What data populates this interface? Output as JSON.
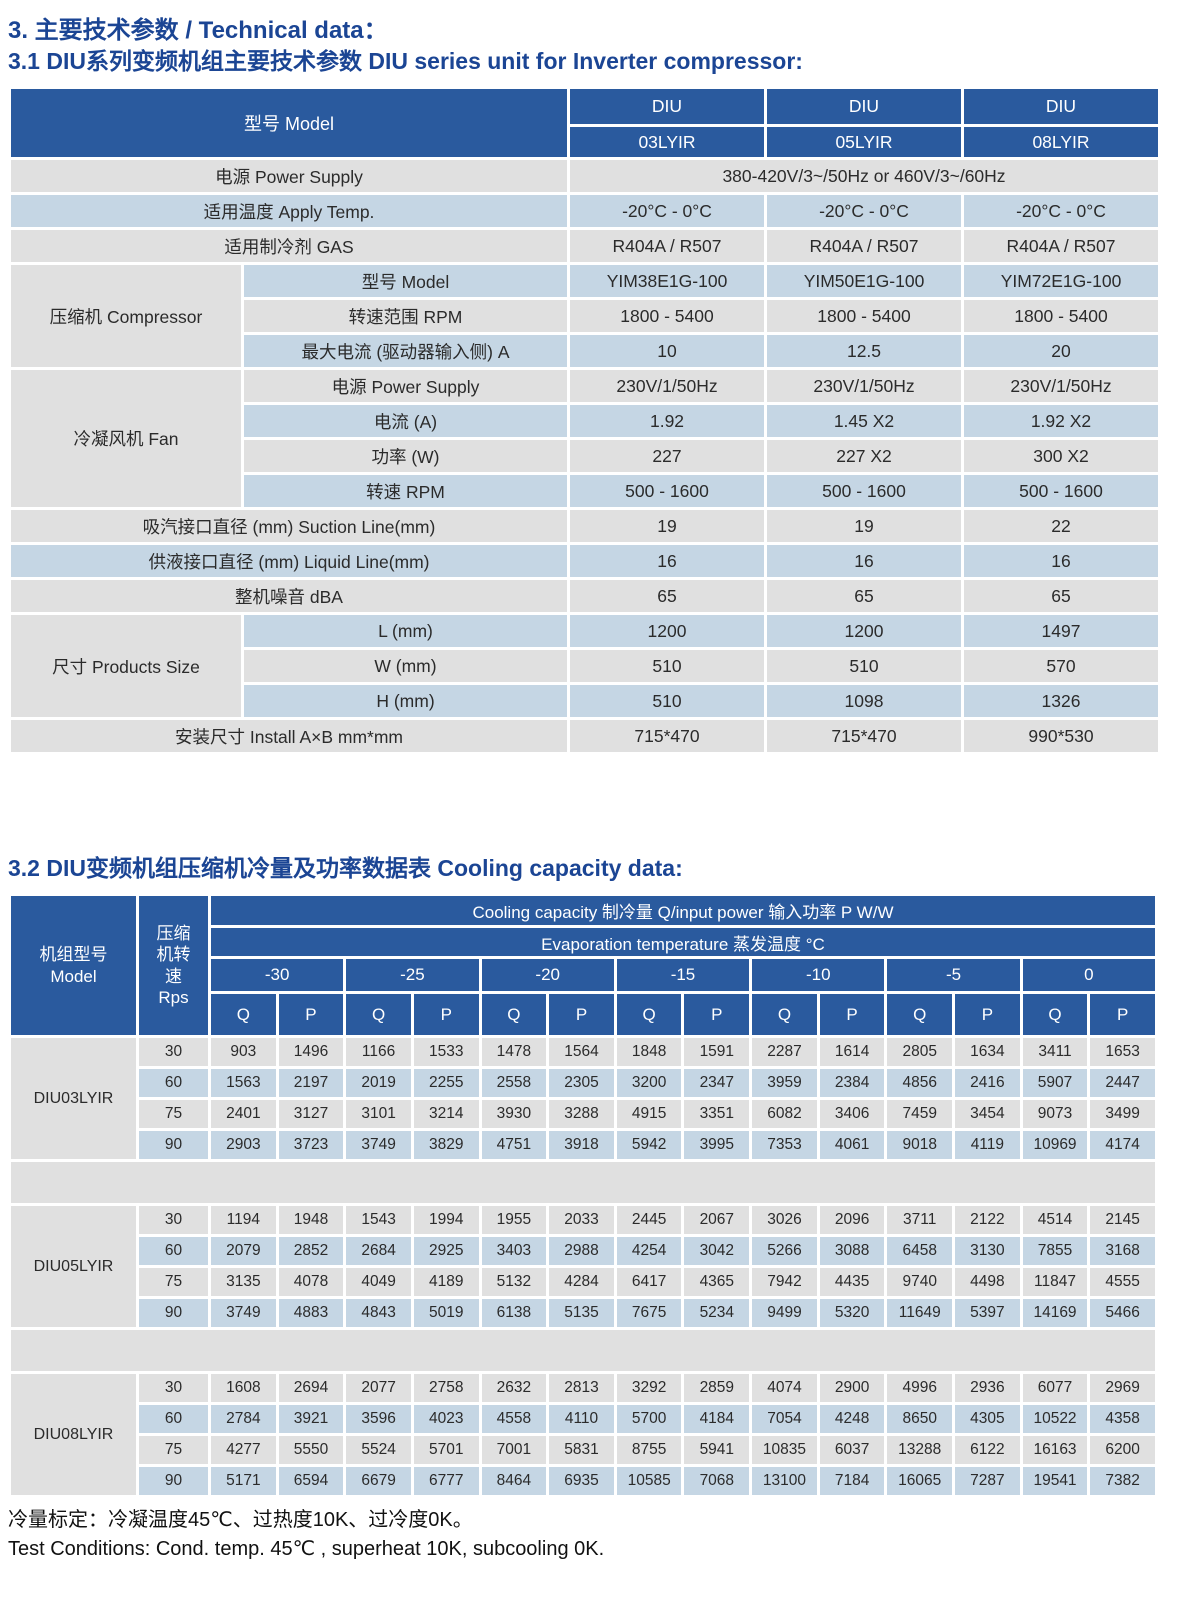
{
  "page_titles": {
    "section": "3. 主要技术参数 / Technical data：",
    "table1": "3.1 DIU系列变频机组主要技术参数 DIU series unit for Inverter compressor:",
    "table2": "3.2 DIU变频机组压缩机冷量及功率数据表 Cooling capacity data:"
  },
  "colors": {
    "header_blue": "#2a5a9e",
    "row_gray": "#e0e0e0",
    "row_blue": "#c5d6e4",
    "title_blue": "#1b4594"
  },
  "spec_table": {
    "corner_label": "型号  Model",
    "columns": [
      {
        "brand": "DIU",
        "model": "03LYIR"
      },
      {
        "brand": "DIU",
        "model": "05LYIR"
      },
      {
        "brand": "DIU",
        "model": "08LYIR"
      }
    ],
    "rows": [
      {
        "type": "merged",
        "label": "电源  Power Supply",
        "value": "380-420V/3~/50Hz or 460V/3~/60Hz"
      },
      {
        "type": "plain",
        "label": "适用温度  Apply Temp.",
        "values": [
          "-20°C - 0°C",
          "-20°C - 0°C",
          "-20°C - 0°C"
        ]
      },
      {
        "type": "plain",
        "label": "适用制冷剂  GAS",
        "values": [
          "R404A / R507",
          "R404A / R507",
          "R404A / R507"
        ]
      },
      {
        "type": "group",
        "group": "压缩机  Compressor",
        "span": 3,
        "sub": "型号  Model",
        "values": [
          "YIM38E1G-100",
          "YIM50E1G-100",
          "YIM72E1G-100"
        ]
      },
      {
        "type": "sub",
        "sub": "转速范围  RPM",
        "values": [
          "1800 - 5400",
          "1800 - 5400",
          "1800 - 5400"
        ]
      },
      {
        "type": "sub",
        "sub": "最大电流 (驱动器输入侧) A",
        "values": [
          "10",
          "12.5",
          "20"
        ]
      },
      {
        "type": "group",
        "group": "冷凝风机  Fan",
        "span": 4,
        "sub": "电源  Power Supply",
        "values": [
          "230V/1/50Hz",
          "230V/1/50Hz",
          "230V/1/50Hz"
        ]
      },
      {
        "type": "sub",
        "sub": "电流 (A)",
        "values": [
          "1.92",
          "1.45 X2",
          "1.92 X2"
        ]
      },
      {
        "type": "sub",
        "sub": "功率 (W)",
        "values": [
          "227",
          "227 X2",
          "300 X2"
        ]
      },
      {
        "type": "sub",
        "sub": "转速 RPM",
        "values": [
          "500 - 1600",
          "500 - 1600",
          "500 - 1600"
        ]
      },
      {
        "type": "plain",
        "label": "吸汽接口直径 (mm)   Suction Line(mm)",
        "values": [
          "19",
          "19",
          "22"
        ]
      },
      {
        "type": "plain",
        "label": "供液接口直径 (mm)   Liquid Line(mm)",
        "values": [
          "16",
          "16",
          "16"
        ]
      },
      {
        "type": "plain",
        "label": "整机噪音  dBA",
        "values": [
          "65",
          "65",
          "65"
        ]
      },
      {
        "type": "group",
        "group": "尺寸  Products Size",
        "span": 3,
        "sub": "L (mm)",
        "values": [
          "1200",
          "1200",
          "1497"
        ]
      },
      {
        "type": "sub",
        "sub": "W (mm)",
        "values": [
          "510",
          "510",
          "570"
        ]
      },
      {
        "type": "sub",
        "sub": "H (mm)",
        "values": [
          "510",
          "1098",
          "1326"
        ]
      },
      {
        "type": "plain",
        "label": "安装尺寸  Install A×B mm*mm",
        "values": [
          "715*470",
          "715*470",
          "990*530"
        ]
      }
    ]
  },
  "cooling_table": {
    "model_header": "机组型号\nModel",
    "rps_header": "压缩\n机转\n速\nRps",
    "capacity_header": "Cooling capacity  制冷量  Q/input power  输入功率  P  W/W",
    "evap_header": "Evaporation temperature  蒸发温度  °C",
    "temperatures": [
      "-30",
      "-25",
      "-20",
      "-15",
      "-10",
      "-5",
      "0"
    ],
    "qp_labels": [
      "Q",
      "P"
    ],
    "blocks": [
      {
        "model": "DIU03LYIR",
        "rows": [
          {
            "rps": "30",
            "values": [
              903,
              1496,
              1166,
              1533,
              1478,
              1564,
              1848,
              1591,
              2287,
              1614,
              2805,
              1634,
              3411,
              1653
            ]
          },
          {
            "rps": "60",
            "values": [
              1563,
              2197,
              2019,
              2255,
              2558,
              2305,
              3200,
              2347,
              3959,
              2384,
              4856,
              2416,
              5907,
              2447
            ]
          },
          {
            "rps": "75",
            "values": [
              2401,
              3127,
              3101,
              3214,
              3930,
              3288,
              4915,
              3351,
              6082,
              3406,
              7459,
              3454,
              9073,
              3499
            ]
          },
          {
            "rps": "90",
            "values": [
              2903,
              3723,
              3749,
              3829,
              4751,
              3918,
              5942,
              3995,
              7353,
              4061,
              9018,
              4119,
              10969,
              4174
            ]
          }
        ]
      },
      {
        "model": "DIU05LYIR",
        "rows": [
          {
            "rps": "30",
            "values": [
              1194,
              1948,
              1543,
              1994,
              1955,
              2033,
              2445,
              2067,
              3026,
              2096,
              3711,
              2122,
              4514,
              2145
            ]
          },
          {
            "rps": "60",
            "values": [
              2079,
              2852,
              2684,
              2925,
              3403,
              2988,
              4254,
              3042,
              5266,
              3088,
              6458,
              3130,
              7855,
              3168
            ]
          },
          {
            "rps": "75",
            "values": [
              3135,
              4078,
              4049,
              4189,
              5132,
              4284,
              6417,
              4365,
              7942,
              4435,
              9740,
              4498,
              11847,
              4555
            ]
          },
          {
            "rps": "90",
            "values": [
              3749,
              4883,
              4843,
              5019,
              6138,
              5135,
              7675,
              5234,
              9499,
              5320,
              11649,
              5397,
              14169,
              5466
            ]
          }
        ]
      },
      {
        "model": "DIU08LYIR",
        "rows": [
          {
            "rps": "30",
            "values": [
              1608,
              2694,
              2077,
              2758,
              2632,
              2813,
              3292,
              2859,
              4074,
              2900,
              4996,
              2936,
              6077,
              2969
            ]
          },
          {
            "rps": "60",
            "values": [
              2784,
              3921,
              3596,
              4023,
              4558,
              4110,
              5700,
              4184,
              7054,
              4248,
              8650,
              4305,
              10522,
              4358
            ]
          },
          {
            "rps": "75",
            "values": [
              4277,
              5550,
              5524,
              5701,
              7001,
              5831,
              8755,
              5941,
              10835,
              6037,
              13288,
              6122,
              16163,
              6200
            ]
          },
          {
            "rps": "90",
            "values": [
              5171,
              6594,
              6679,
              6777,
              8464,
              6935,
              10585,
              7068,
              13100,
              7184,
              16065,
              7287,
              19541,
              7382
            ]
          }
        ]
      }
    ]
  },
  "footnotes": {
    "cn": "冷量标定：冷凝温度45℃、过热度10K、过冷度0K。",
    "en": "Test Conditions:  Cond. temp. 45℃ , superheat 10K,  subcooling 0K."
  }
}
